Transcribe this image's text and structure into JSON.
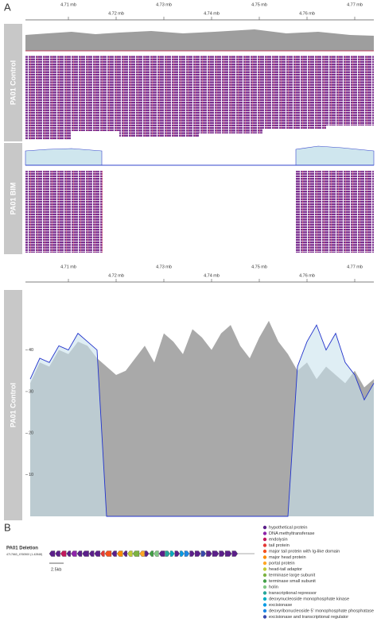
{
  "panel_a": {
    "label": "A",
    "control_label": "PA01 Control",
    "bim_label": "PA01 BIM",
    "axis_ticks": [
      {
        "value": 4.71,
        "label": "4.71 mb"
      },
      {
        "value": 4.72,
        "label": "4.72 mb"
      },
      {
        "value": 4.73,
        "label": "4.73 mb"
      },
      {
        "value": 4.74,
        "label": "4.74 mb"
      },
      {
        "value": 4.75,
        "label": "4.75 mb"
      },
      {
        "value": 4.76,
        "label": "4.76 mb"
      },
      {
        "value": 4.77,
        "label": "4.77 mb"
      }
    ]
  },
  "chart_data": {
    "type": "area",
    "y_label": "PA01 Control",
    "x": [
      4.702,
      4.704,
      4.706,
      4.708,
      4.71,
      4.712,
      4.714,
      4.716,
      4.718,
      4.72,
      4.722,
      4.724,
      4.726,
      4.728,
      4.73,
      4.732,
      4.734,
      4.736,
      4.738,
      4.74,
      4.742,
      4.744,
      4.746,
      4.748,
      4.75,
      4.752,
      4.754,
      4.756,
      4.758,
      4.76,
      4.762,
      4.764,
      4.766,
      4.768,
      4.77,
      4.772,
      4.774
    ],
    "xlim": [
      4.701,
      4.774
    ],
    "ylim": [
      0,
      55
    ],
    "yticks": [
      10,
      20,
      30,
      40
    ],
    "series": [
      {
        "color": "#a9a9a9",
        "values": [
          32,
          37,
          36,
          40,
          39,
          42,
          41,
          38,
          36,
          34,
          35,
          38,
          41,
          37,
          44,
          42,
          39,
          45,
          43,
          40,
          44,
          46,
          41,
          38,
          43,
          47,
          42,
          39,
          35,
          37,
          33,
          36,
          34,
          32,
          35,
          31,
          33
        ]
      },
      {
        "color": "#2233cc",
        "fill": "#c9e3ec",
        "values": [
          33,
          38,
          37,
          41,
          40,
          44,
          42,
          40,
          0,
          0,
          0,
          0,
          0,
          0,
          0,
          0,
          0,
          0,
          0,
          0,
          0,
          0,
          0,
          0,
          0,
          0,
          0,
          0,
          36,
          42,
          46,
          40,
          44,
          37,
          34,
          28,
          32
        ]
      }
    ]
  },
  "panel_b": {
    "label": "B",
    "map_title": "PA01 Deletion",
    "map_subtitle": "4717663_4760500 (1-42848)",
    "scale_label": "2.5kb",
    "legend": [
      {
        "name": "hypothetical protein",
        "color": "#5b1f8a"
      },
      {
        "name": "DNA methyltransferase",
        "color": "#8e24aa"
      },
      {
        "name": "endolysin",
        "color": "#c2185b"
      },
      {
        "name": "tail protein",
        "color": "#e53935"
      },
      {
        "name": "major tail protein with Ig-like domain",
        "color": "#f4511e"
      },
      {
        "name": "major head protein",
        "color": "#fb8c00"
      },
      {
        "name": "portal protein",
        "color": "#ffa726"
      },
      {
        "name": "head-tail adaptor",
        "color": "#c0ca33"
      },
      {
        "name": "terminase large subunit",
        "color": "#7cb342"
      },
      {
        "name": "terminase small subunit",
        "color": "#43a047"
      },
      {
        "name": "holin",
        "color": "#81c784"
      },
      {
        "name": "transcriptional repressor",
        "color": "#26a69a"
      },
      {
        "name": "deoxynucleoside monophosphate kinase",
        "color": "#00acc1"
      },
      {
        "name": "excisionase",
        "color": "#039be5"
      },
      {
        "name": "deoxyribonucleoside 5' monophosphate phosphatase",
        "color": "#1e88e5"
      },
      {
        "name": "excisionase and transcriptional regulator",
        "color": "#3949ab"
      }
    ]
  }
}
